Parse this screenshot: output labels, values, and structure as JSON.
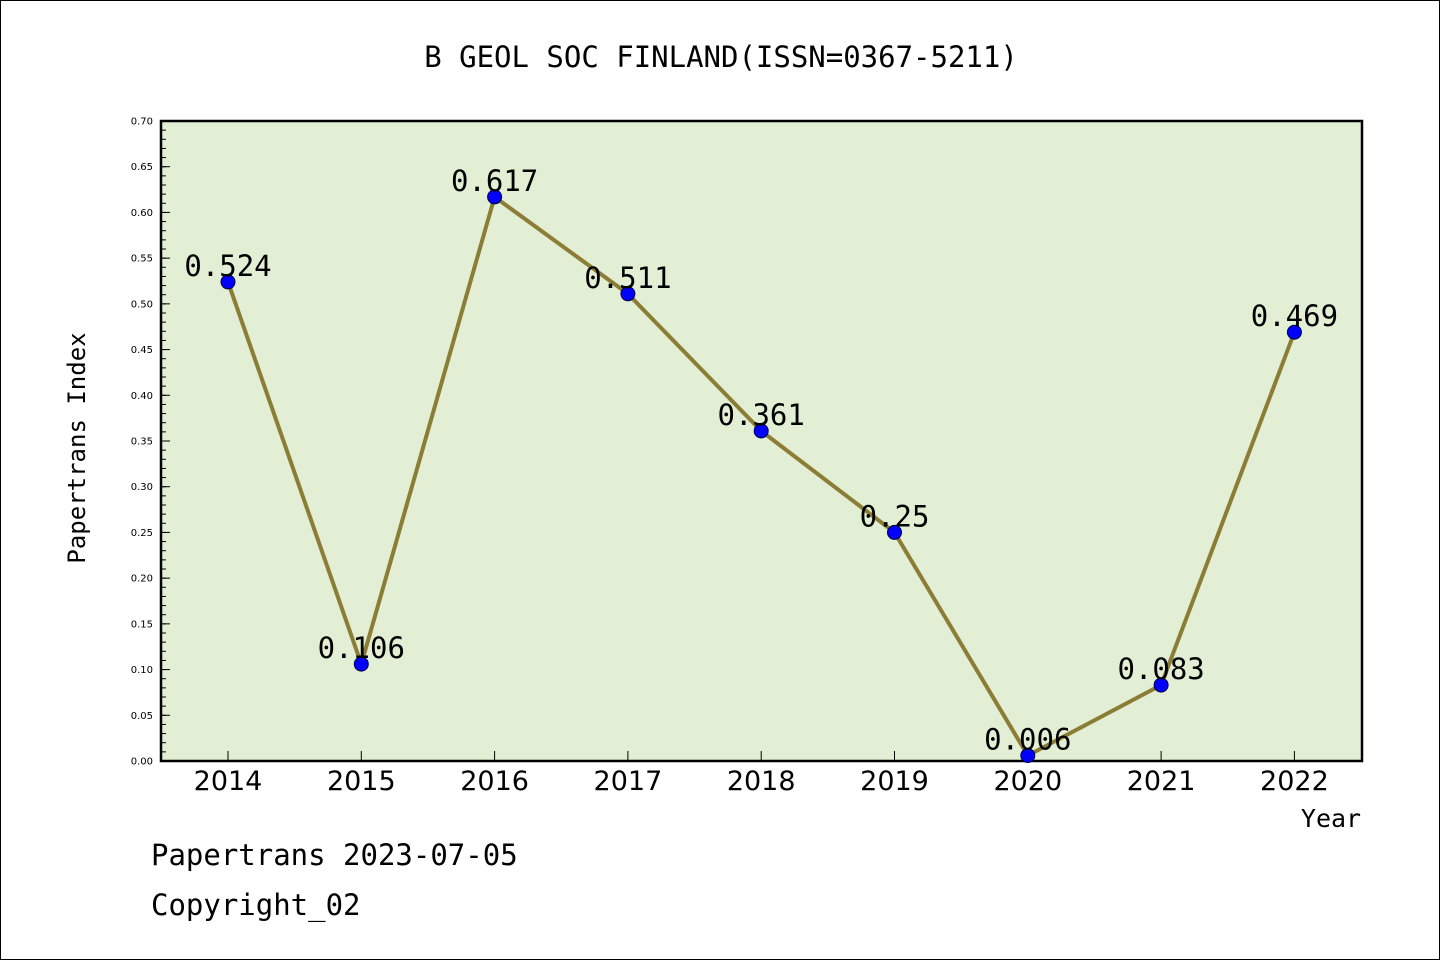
{
  "chart_data": {
    "type": "line",
    "title": "B GEOL SOC FINLAND(ISSN=0367-5211)",
    "xlabel": "Year",
    "ylabel": "Papertrans Index",
    "categories": [
      "2014",
      "2015",
      "2016",
      "2017",
      "2018",
      "2019",
      "2020",
      "2021",
      "2022"
    ],
    "values": [
      0.524,
      0.106,
      0.617,
      0.511,
      0.361,
      0.25,
      0.006,
      0.083,
      0.469
    ],
    "data_labels": [
      "0.524",
      "0.106",
      "0.617",
      "0.511",
      "0.361",
      "0.25",
      "0.006",
      "0.083",
      "0.469"
    ],
    "ylim": [
      0,
      0.7
    ],
    "y_ticks": [
      "0.00",
      "0.05",
      "0.10",
      "0.15",
      "0.20",
      "0.25",
      "0.30",
      "0.35",
      "0.40",
      "0.45",
      "0.50",
      "0.55",
      "0.60",
      "0.65",
      "0.70"
    ],
    "grid": false,
    "colors": {
      "plot_background": "#e2efd5",
      "line": "#8b7d35",
      "marker": "#0000ff"
    }
  },
  "footer": {
    "line1": "Papertrans 2023-07-05",
    "line2": "Copyright_02"
  }
}
